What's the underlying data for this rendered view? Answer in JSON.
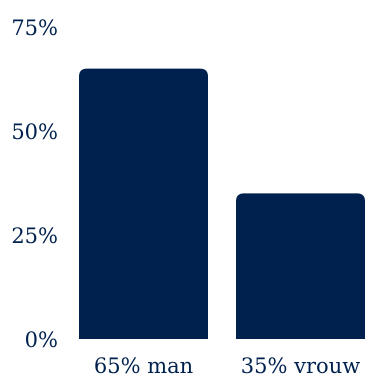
{
  "chart_data": {
    "type": "bar",
    "categories": [
      "65% man",
      "35% vrouw"
    ],
    "values": [
      65,
      35
    ],
    "y_ticks": [
      0,
      25,
      50,
      75
    ],
    "y_tick_labels": [
      "0%",
      "25%",
      "50%",
      "75%"
    ],
    "ylim": [
      0,
      75
    ],
    "grid": false,
    "legend": "none"
  },
  "colors": {
    "bar": "#00214d",
    "text": "#00214d"
  }
}
